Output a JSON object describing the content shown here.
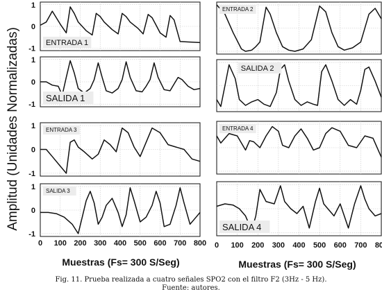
{
  "figure": {
    "ylabel": "Amplitud (Unidades Normalizadas)",
    "xlabel_left": "Muestras (Fs= 300 S/Seg)",
    "xlabel_right": "Muestras (Fs= 300 S/Seg)"
  },
  "caption": {
    "line1": "Fig. 11. Prueba realizada a cuatro señales SPO2 con el filtro F2 (3Hz - 5 Hz).",
    "line2": "Fuente: autores."
  },
  "chart_data": [
    {
      "type": "line",
      "panel": "entrada-1",
      "label": "ENTRADA 1",
      "label_position": "bottom-left",
      "xlim": [
        0,
        800
      ],
      "ylim": [
        -1,
        1
      ],
      "yticks": [
        -1,
        0,
        1
      ],
      "grid": true,
      "x": [
        0,
        30,
        60,
        100,
        130,
        150,
        170,
        190,
        230,
        260,
        280,
        300,
        320,
        360,
        390,
        410,
        430,
        450,
        490,
        515,
        540,
        560,
        580,
        600,
        630,
        650,
        670,
        700,
        740,
        800
      ],
      "y": [
        0.05,
        0.2,
        0.7,
        0.1,
        -0.3,
        0.9,
        0.6,
        0.2,
        -0.2,
        -0.4,
        0.6,
        0.45,
        0.2,
        -0.15,
        -0.35,
        0.6,
        0.45,
        0.2,
        -0.1,
        -0.35,
        0.55,
        0.4,
        0.05,
        -0.3,
        -0.5,
        0.5,
        0.3,
        -0.7,
        -0.72,
        -0.75
      ]
    },
    {
      "type": "line",
      "panel": "entrada-2",
      "label": "ENTRADA 2",
      "label_position": "top-left",
      "xlim": [
        0,
        800
      ],
      "ylim": [
        -1,
        1
      ],
      "yticks": [],
      "grid": true,
      "x": [
        0,
        40,
        80,
        120,
        140,
        170,
        190,
        210,
        240,
        260,
        290,
        320,
        350,
        380,
        420,
        460,
        500,
        530,
        560,
        590,
        620,
        660,
        700,
        740,
        770,
        800
      ],
      "y": [
        1.0,
        0.6,
        -0.2,
        -0.9,
        -1.0,
        -0.95,
        -0.8,
        -0.6,
        0.9,
        0.6,
        -0.2,
        -0.8,
        -0.95,
        -1.0,
        -0.9,
        -0.5,
        0.95,
        0.7,
        -0.2,
        -0.8,
        -0.95,
        -0.85,
        -0.6,
        0.6,
        0.85,
        0.4
      ]
    },
    {
      "type": "line",
      "panel": "salida-1",
      "label": "SALIDA 1",
      "label_position": "bottom-left",
      "xlim": [
        0,
        800
      ],
      "ylim": [
        -1,
        1
      ],
      "yticks": [
        -1,
        0,
        1
      ],
      "grid": true,
      "x": [
        0,
        30,
        60,
        90,
        110,
        130,
        150,
        170,
        190,
        220,
        250,
        270,
        290,
        310,
        330,
        360,
        390,
        410,
        430,
        450,
        480,
        510,
        530,
        550,
        570,
        590,
        620,
        650,
        670,
        690,
        710,
        740,
        770,
        800
      ],
      "y": [
        0.0,
        0.0,
        -0.15,
        -0.2,
        -0.6,
        0.2,
        0.95,
        0.4,
        -0.3,
        -0.5,
        -0.3,
        0.1,
        0.85,
        0.2,
        -0.4,
        -0.5,
        -0.3,
        0.1,
        0.9,
        0.2,
        -0.4,
        -0.45,
        -0.2,
        0.1,
        0.85,
        0.2,
        -0.35,
        -0.4,
        -0.1,
        0.2,
        0.1,
        -0.2,
        -0.35,
        -0.3
      ]
    },
    {
      "type": "line",
      "panel": "salida-2",
      "label": "SALIDA 2",
      "label_position": "top-center",
      "xlim": [
        0,
        800
      ],
      "ylim": [
        -1,
        1
      ],
      "yticks": [],
      "grid": true,
      "x": [
        0,
        20,
        40,
        60,
        90,
        110,
        140,
        170,
        200,
        230,
        260,
        290,
        310,
        330,
        350,
        380,
        410,
        440,
        470,
        490,
        510,
        530,
        560,
        590,
        620,
        650,
        680,
        700,
        720,
        740,
        770,
        800
      ],
      "y": [
        -0.6,
        -0.9,
        0.0,
        0.9,
        0.3,
        -0.6,
        -0.85,
        -0.7,
        -0.6,
        -0.8,
        -0.9,
        -0.3,
        0.7,
        0.9,
        0.2,
        -0.6,
        -0.85,
        -0.7,
        -0.8,
        -0.85,
        0.6,
        0.9,
        0.2,
        -0.6,
        -0.85,
        -0.6,
        -0.8,
        -0.2,
        0.7,
        0.8,
        0.2,
        -0.5
      ]
    },
    {
      "type": "line",
      "panel": "entrada-3",
      "label": "ENTRADA 3",
      "label_position": "top-left",
      "xlim": [
        0,
        800
      ],
      "ylim": [
        -1,
        1
      ],
      "yticks": [
        -1,
        0,
        1
      ],
      "grid": true,
      "x": [
        0,
        30,
        60,
        100,
        130,
        150,
        170,
        190,
        220,
        260,
        290,
        320,
        350,
        380,
        410,
        440,
        470,
        500,
        530,
        560,
        600,
        640,
        680,
        720,
        760,
        800
      ],
      "y": [
        0.0,
        0.0,
        -0.3,
        -0.7,
        -1.0,
        0.3,
        0.4,
        0.1,
        -0.1,
        -0.4,
        -0.2,
        0.4,
        0.2,
        -0.1,
        0.9,
        0.7,
        0.1,
        -0.3,
        0.3,
        0.9,
        0.7,
        0.2,
        0.1,
        0.0,
        -0.4,
        -0.5
      ]
    },
    {
      "type": "line",
      "panel": "entrada-4",
      "label": "ENTRADA 4",
      "label_position": "top-left",
      "xlim": [
        0,
        800
      ],
      "ylim": [
        -1,
        1
      ],
      "yticks": [],
      "grid": true,
      "x": [
        0,
        20,
        60,
        100,
        140,
        160,
        180,
        210,
        240,
        270,
        300,
        320,
        350,
        380,
        410,
        440,
        470,
        500,
        530,
        560,
        600,
        640,
        680,
        720,
        760,
        800
      ],
      "y": [
        0.5,
        0.2,
        0.6,
        0.5,
        -0.1,
        0.3,
        0.25,
        0.0,
        0.5,
        0.9,
        0.7,
        0.1,
        0.0,
        0.5,
        0.8,
        0.4,
        -0.1,
        0.0,
        0.6,
        0.85,
        0.7,
        0.1,
        0.0,
        0.5,
        0.4,
        -0.4
      ]
    },
    {
      "type": "line",
      "panel": "salida-3",
      "label": "SALIDA 3",
      "label_position": "top-left",
      "xlim": [
        0,
        800
      ],
      "ylim": [
        -1,
        1
      ],
      "yticks": [
        -1,
        0,
        1
      ],
      "grid": true,
      "x": [
        0,
        40,
        80,
        120,
        160,
        190,
        210,
        230,
        250,
        270,
        290,
        310,
        330,
        360,
        390,
        410,
        430,
        450,
        470,
        500,
        530,
        560,
        580,
        600,
        620,
        650,
        680,
        700,
        720,
        750,
        780,
        800
      ],
      "y": [
        -0.1,
        -0.1,
        -0.15,
        -0.3,
        -0.6,
        -1.0,
        -0.3,
        0.4,
        0.8,
        0.3,
        -0.6,
        -0.3,
        0.2,
        0.5,
        -0.1,
        -0.7,
        -0.2,
        0.95,
        0.4,
        -0.5,
        -0.3,
        0.2,
        0.8,
        0.3,
        -0.7,
        -0.6,
        0.2,
        0.95,
        0.3,
        -0.6,
        -0.3,
        -0.1
      ]
    },
    {
      "type": "line",
      "panel": "salida-4",
      "label": "SALIDA 4",
      "label_position": "bottom-left",
      "xlim": [
        0,
        800
      ],
      "ylim": [
        -1,
        1
      ],
      "yticks": [],
      "grid": true,
      "x": [
        0,
        40,
        80,
        110,
        140,
        170,
        190,
        210,
        240,
        280,
        310,
        330,
        360,
        390,
        420,
        450,
        480,
        500,
        520,
        540,
        570,
        600,
        640,
        670,
        700,
        720,
        740,
        770,
        800
      ],
      "y": [
        0.1,
        0.2,
        0.15,
        0.0,
        -0.3,
        -0.9,
        -0.3,
        0.8,
        0.3,
        0.2,
        0.95,
        0.3,
        0.0,
        -0.2,
        0.1,
        -0.8,
        0.3,
        0.85,
        0.2,
        0.0,
        -0.3,
        0.2,
        -0.8,
        0.2,
        0.95,
        0.4,
        0.0,
        -0.3,
        -0.2
      ]
    }
  ],
  "x_axis": {
    "ticks": [
      0,
      100,
      200,
      300,
      400,
      500,
      600,
      700,
      800
    ]
  }
}
